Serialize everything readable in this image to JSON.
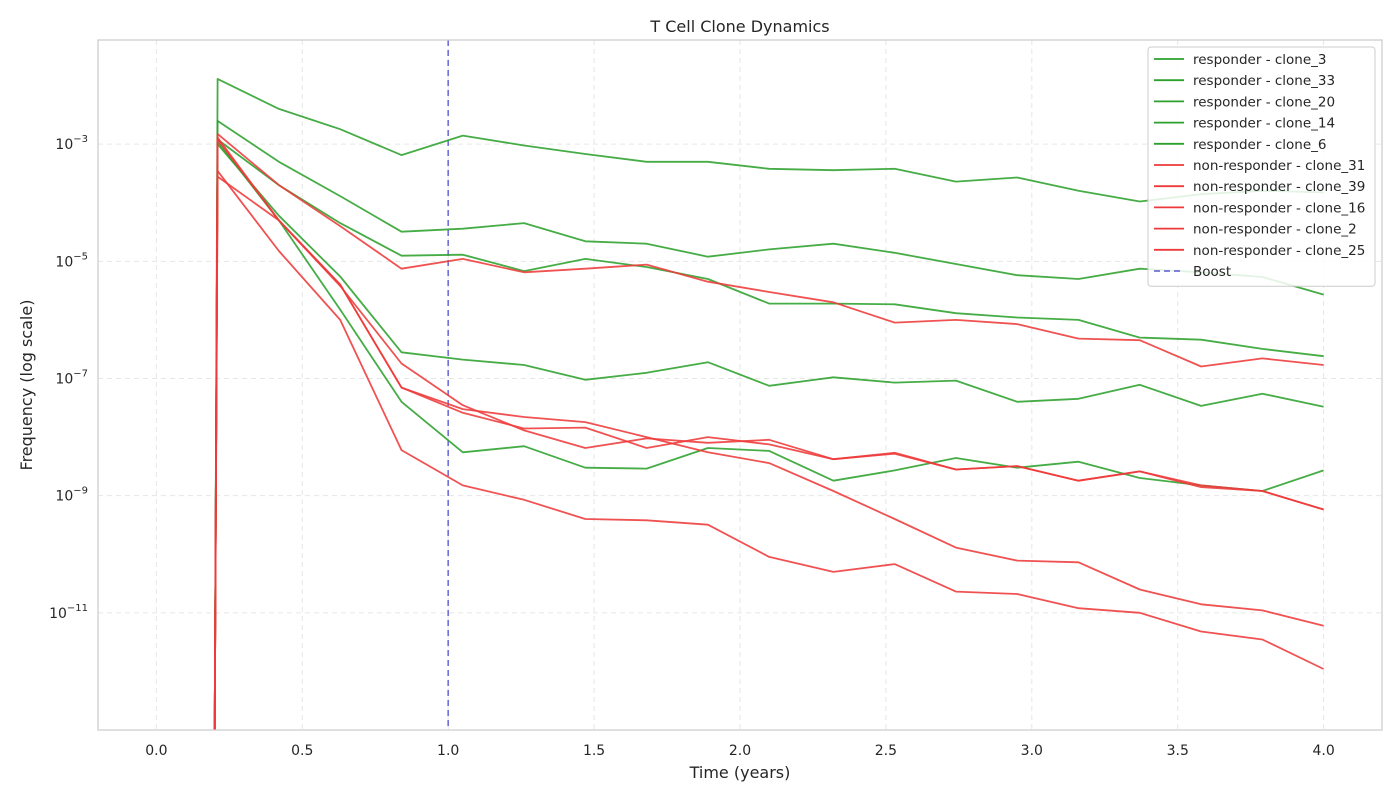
{
  "chart_data": {
    "type": "line",
    "title": "T Cell Clone Dynamics",
    "xlabel": "Time (years)",
    "ylabel": "Frequency (log scale)",
    "x_ticks": [
      "0.0",
      "0.5",
      "1.0",
      "1.5",
      "2.0",
      "2.5",
      "3.0",
      "3.5",
      "4.0"
    ],
    "x_tick_values": [
      0,
      0.5,
      1.0,
      1.5,
      2.0,
      2.5,
      3.0,
      3.5,
      4.0
    ],
    "y_tick_exponents": [
      -3,
      -5,
      -7,
      -9,
      -11
    ],
    "xlim": [
      -0.2,
      4.2
    ],
    "ylim": [
      1e-13,
      0.06
    ],
    "y_scale": "log",
    "grid": true,
    "legend_position": "top-right",
    "boost": {
      "x": 1.0,
      "label": "Boost",
      "color": "#7070d8"
    },
    "x": [
      0.2,
      0.21,
      0.42,
      0.63,
      0.84,
      1.05,
      1.26,
      1.47,
      1.68,
      1.89,
      2.1,
      2.32,
      2.53,
      2.74,
      2.95,
      3.16,
      3.37,
      3.58,
      3.79,
      4.0
    ],
    "series": [
      {
        "name": "responder - clone_3",
        "group": "responder",
        "color": "#2ca02c",
        "values": [
          1e-13,
          0.013,
          0.004,
          0.0018,
          0.00065,
          0.0014,
          0.00095,
          0.00068,
          0.0005,
          0.0005,
          0.00038,
          0.00036,
          0.00038,
          0.00023,
          0.00027,
          0.00016,
          0.000105,
          0.00014,
          0.00016,
          0.00015
        ]
      },
      {
        "name": "responder - clone_33",
        "group": "responder",
        "color": "#2ca02c",
        "values": [
          1e-13,
          0.0025,
          0.0005,
          0.00013,
          3.2e-05,
          3.6e-05,
          4.5e-05,
          2.2e-05,
          2e-05,
          1.2e-05,
          1.6e-05,
          2e-05,
          1.4e-05,
          9e-06,
          5.8e-06,
          5e-06,
          7.5e-06,
          6.5e-06,
          5.4e-06,
          2.7e-06
        ]
      },
      {
        "name": "responder - clone_20",
        "group": "responder",
        "color": "#2ca02c",
        "values": [
          1e-13,
          0.0012,
          0.0002,
          4.5e-05,
          1.25e-05,
          1.3e-05,
          6.8e-06,
          1.1e-05,
          8e-06,
          5e-06,
          1.9e-06,
          1.9e-06,
          1.85e-06,
          1.3e-06,
          1.1e-06,
          1e-06,
          5e-07,
          4.6e-07,
          3.2e-07,
          2.4e-07
        ]
      },
      {
        "name": "responder - clone_14",
        "group": "responder",
        "color": "#2ca02c",
        "values": [
          1e-13,
          0.001,
          6e-05,
          5.5e-06,
          2.8e-07,
          2.1e-07,
          1.7e-07,
          9.5e-08,
          1.25e-07,
          1.9e-07,
          7.5e-08,
          1.05e-07,
          8.5e-08,
          9.2e-08,
          4e-08,
          4.5e-08,
          7.8e-08,
          3.4e-08,
          5.5e-08,
          3.3e-08
        ]
      },
      {
        "name": "responder - clone_6",
        "group": "responder",
        "color": "#2ca02c",
        "values": [
          1e-13,
          0.0011,
          5e-05,
          1.5e-06,
          4e-08,
          5.5e-09,
          7e-09,
          3e-09,
          2.9e-09,
          6.5e-09,
          5.8e-09,
          1.8e-09,
          2.7e-09,
          4.4e-09,
          3e-09,
          3.8e-09,
          2e-09,
          1.5e-09,
          1.2e-09,
          2.7e-09
        ]
      },
      {
        "name": "non-responder - clone_31",
        "group": "non-responder",
        "color": "#ee3a3a",
        "values": [
          1e-13,
          0.0015,
          0.0002,
          4e-05,
          7.5e-06,
          1.1e-05,
          6.5e-06,
          7.5e-06,
          8.8e-06,
          4.5e-06,
          3e-06,
          2e-06,
          9e-07,
          1e-06,
          8.5e-07,
          4.8e-07,
          4.5e-07,
          1.6e-07,
          2.2e-07,
          1.7e-07
        ]
      },
      {
        "name": "non-responder - clone_39",
        "group": "non-responder",
        "color": "#ee3a3a",
        "values": [
          1e-13,
          0.0013,
          5e-05,
          4e-06,
          7e-08,
          3e-08,
          2.2e-08,
          1.8e-08,
          1e-08,
          5.5e-09,
          3.6e-09,
          1.2e-09,
          4e-10,
          1.3e-10,
          7.8e-11,
          7.3e-11,
          2.5e-11,
          1.4e-11,
          1.1e-11,
          6e-12
        ]
      },
      {
        "name": "non-responder - clone_16",
        "group": "non-responder",
        "color": "#ee3a3a",
        "values": [
          1e-13,
          0.0012,
          5e-05,
          4e-06,
          7e-08,
          2.6e-08,
          1.4e-08,
          1.45e-08,
          6.5e-09,
          1e-08,
          7.5e-09,
          4.2e-09,
          5.4e-09,
          2.8e-09,
          3.2e-09,
          1.8e-09,
          2.6e-09,
          1.5e-09,
          1.2e-09,
          5.8e-10
        ]
      },
      {
        "name": "non-responder - clone_2",
        "group": "non-responder",
        "color": "#ee3a3a",
        "values": [
          1e-13,
          0.00035,
          1.5e-05,
          1e-06,
          6e-09,
          1.5e-09,
          8.5e-10,
          4e-10,
          3.8e-10,
          3.2e-10,
          9e-11,
          5e-11,
          6.8e-11,
          2.3e-11,
          2.1e-11,
          1.2e-11,
          1e-11,
          4.8e-12,
          3.5e-12,
          1.1e-12
        ]
      },
      {
        "name": "non-responder - clone_25",
        "group": "non-responder",
        "color": "#ee3a3a",
        "values": [
          1e-13,
          0.00028,
          5e-05,
          3.8e-06,
          1.8e-07,
          3.5e-08,
          1.3e-08,
          6.5e-09,
          9.5e-09,
          8e-09,
          9e-09,
          4.2e-09,
          5.2e-09,
          2.8e-09,
          3.2e-09,
          1.8e-09,
          2.6e-09,
          1.4e-09,
          1.2e-09,
          5.8e-10
        ]
      }
    ]
  }
}
